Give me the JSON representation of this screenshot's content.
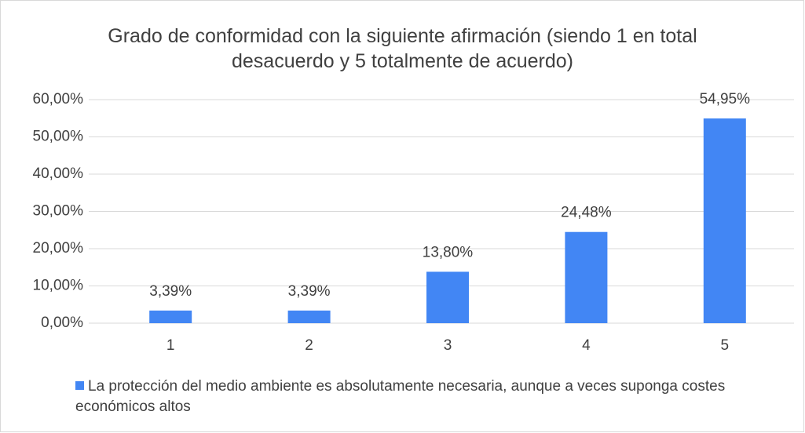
{
  "chart_data": {
    "type": "bar",
    "title": "Grado de conformidad con la siguiente afirmación (siendo 1 en total desacuerdo y 5 totalmente de acuerdo)",
    "categories": [
      "1",
      "2",
      "3",
      "4",
      "5"
    ],
    "series": [
      {
        "name": "La protección del medio ambiente es absolutamente necesaria, aunque a veces suponga costes económicos altos",
        "color": "#4286f4",
        "values": [
          3.39,
          3.39,
          13.8,
          24.48,
          54.95
        ],
        "value_labels": [
          "3,39%",
          "3,39%",
          "13,80%",
          "24,48%",
          "54,95%"
        ]
      }
    ],
    "ylim": [
      0,
      60
    ],
    "yticks": [
      {
        "value": 0,
        "label": "0,00%"
      },
      {
        "value": 10,
        "label": "10,00%"
      },
      {
        "value": 20,
        "label": "20,00%"
      },
      {
        "value": 30,
        "label": "30,00%"
      },
      {
        "value": 40,
        "label": "40,00%"
      },
      {
        "value": 50,
        "label": "50,00%"
      },
      {
        "value": 60,
        "label": "60,00%"
      }
    ],
    "grid": true,
    "legend": "bottom"
  }
}
